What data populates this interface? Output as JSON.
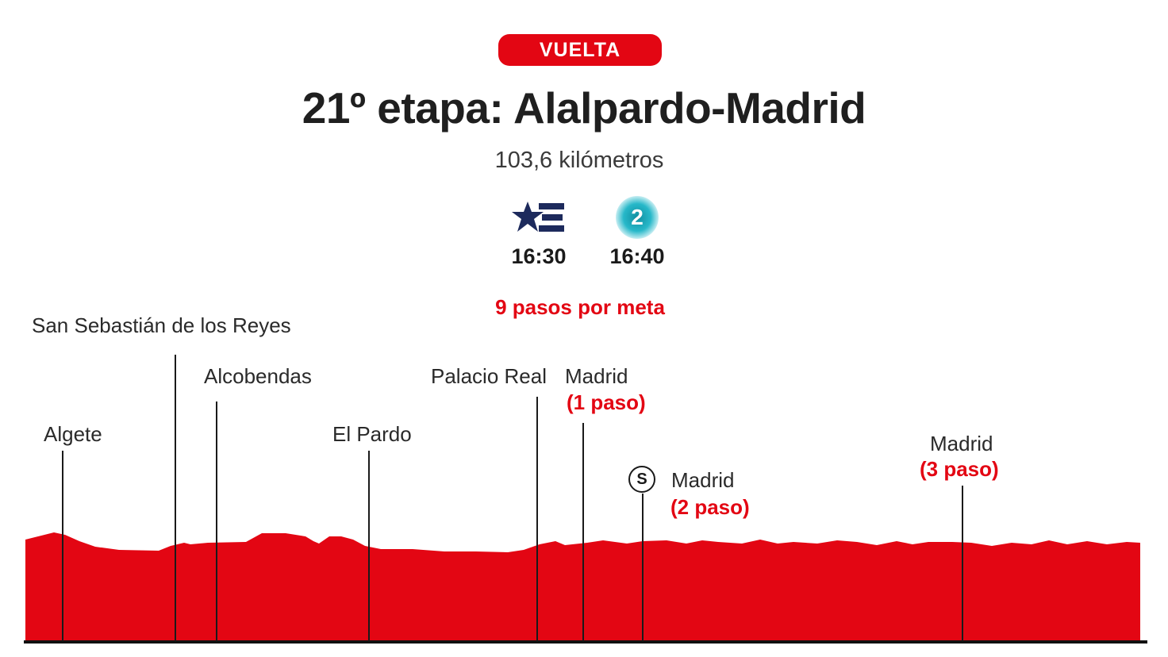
{
  "header": {
    "badge": "VUELTA",
    "title": "21º etapa: Alalpardo-Madrid",
    "distance": "103,6 kilómetros"
  },
  "broadcast": [
    {
      "channel_icon": "eurosport-icon",
      "time": "16:30"
    },
    {
      "channel_icon": "tve2-icon",
      "logo_text": "2",
      "time": "16:40"
    }
  ],
  "laps_note": "9 pasos por meta",
  "places": [
    {
      "name": "Algete"
    },
    {
      "name": "San Sebastián de los Reyes"
    },
    {
      "name": "Alcobendas"
    },
    {
      "name": "El Pardo"
    },
    {
      "name": "Palacio Real"
    },
    {
      "name": "Madrid",
      "pass": "(1 paso)"
    },
    {
      "name": "Madrid",
      "pass": "(2 paso)",
      "sprint": "S"
    },
    {
      "name": "Madrid",
      "pass": "(3 paso)"
    }
  ],
  "colors": {
    "accent": "#e30613",
    "text": "#1f1f1f"
  }
}
